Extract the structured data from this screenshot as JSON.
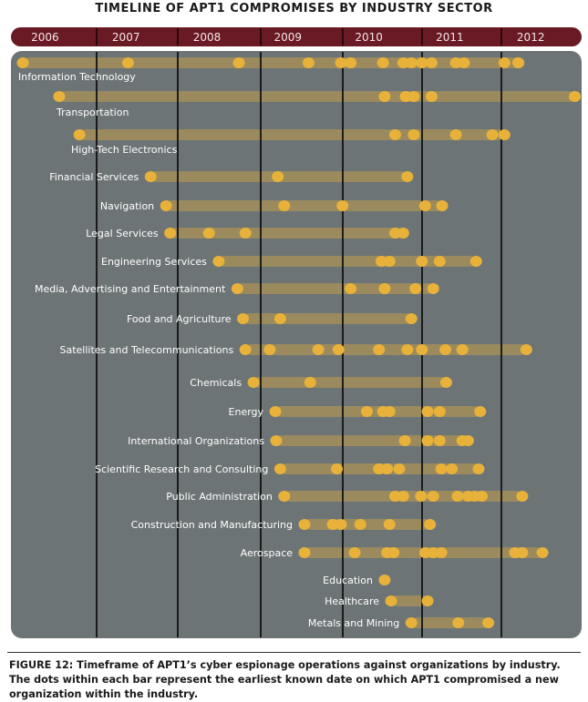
{
  "chart_data": {
    "type": "timeline",
    "title": "TIMELINE OF APT1 COMPROMISES BY INDUSTRY SECTOR",
    "x_ticks": [
      "2006",
      "2007",
      "2008",
      "2009",
      "2010",
      "2011",
      "2012"
    ],
    "x_range": [
      2005.5,
      2013.0
    ],
    "colors": {
      "header_band": "#6a1a24",
      "panel": "#6d7476",
      "bar": "#9a8a5e",
      "dot": "#e8b23a",
      "year_line": "#111111",
      "label": "#ffffff"
    },
    "sectors": [
      {
        "name": "Information Technology",
        "start": 2006.0,
        "end": 2012.2,
        "points": [
          2006.0,
          2007.3,
          2008.67,
          2009.53,
          2009.93,
          2010.05,
          2010.45,
          2010.7,
          2010.8,
          2010.93,
          2011.05,
          2011.35,
          2011.45,
          2011.95,
          2012.12
        ]
      },
      {
        "name": "Transportation",
        "start": 2006.45,
        "end": 2012.82,
        "points": [
          2006.45,
          2010.47,
          2010.73,
          2010.83,
          2011.05,
          2012.82
        ]
      },
      {
        "name": "High-Tech Electronics",
        "start": 2006.7,
        "end": 2012.0,
        "points": [
          2006.7,
          2010.6,
          2010.83,
          2011.35,
          2011.8,
          2011.95
        ]
      },
      {
        "name": "Financial Services",
        "start": 2007.58,
        "end": 2010.75,
        "points": [
          2007.58,
          2009.15,
          2010.75
        ]
      },
      {
        "name": "Navigation",
        "start": 2007.77,
        "end": 2011.18,
        "points": [
          2007.77,
          2009.23,
          2009.95,
          2010.97,
          2011.18
        ]
      },
      {
        "name": "Legal Services",
        "start": 2007.82,
        "end": 2010.7,
        "points": [
          2007.82,
          2008.3,
          2008.75,
          2010.6,
          2010.7
        ]
      },
      {
        "name": "Engineering Services",
        "start": 2008.42,
        "end": 2011.6,
        "points": [
          2008.42,
          2010.43,
          2010.53,
          2010.93,
          2011.15,
          2011.6
        ]
      },
      {
        "name": "Media, Advertising and Entertainment",
        "start": 2008.65,
        "end": 2011.07,
        "points": [
          2008.65,
          2010.05,
          2010.47,
          2010.85,
          2011.07
        ]
      },
      {
        "name": "Food and Agriculture",
        "start": 2008.72,
        "end": 2010.8,
        "points": [
          2008.72,
          2009.18,
          2010.8
        ]
      },
      {
        "name": "Satellites and Telecommunications",
        "start": 2008.75,
        "end": 2012.22,
        "points": [
          2008.75,
          2009.05,
          2009.65,
          2009.9,
          2010.4,
          2010.75,
          2010.93,
          2011.22,
          2011.43,
          2012.22
        ]
      },
      {
        "name": "Chemicals",
        "start": 2008.85,
        "end": 2011.23,
        "points": [
          2008.85,
          2009.55,
          2011.23
        ]
      },
      {
        "name": "Energy",
        "start": 2009.12,
        "end": 2011.65,
        "points": [
          2009.12,
          2010.25,
          2010.45,
          2010.53,
          2011.0,
          2011.15,
          2011.65
        ]
      },
      {
        "name": "International Organizations",
        "start": 2009.13,
        "end": 2011.5,
        "points": [
          2009.13,
          2010.72,
          2011.0,
          2011.15,
          2011.43,
          2011.5
        ]
      },
      {
        "name": "Scientific Research and Consulting",
        "start": 2009.18,
        "end": 2011.63,
        "points": [
          2009.18,
          2009.88,
          2010.4,
          2010.5,
          2010.65,
          2011.17,
          2011.3,
          2011.63
        ]
      },
      {
        "name": "Public Administration",
        "start": 2009.23,
        "end": 2012.17,
        "points": [
          2009.23,
          2010.6,
          2010.7,
          2010.92,
          2011.07,
          2011.37,
          2011.5,
          2011.58,
          2011.67,
          2012.17
        ]
      },
      {
        "name": "Construction and Manufacturing",
        "start": 2009.48,
        "end": 2011.03,
        "points": [
          2009.48,
          2009.83,
          2009.93,
          2010.17,
          2010.53,
          2011.03
        ]
      },
      {
        "name": "Aerospace",
        "start": 2009.48,
        "end": 2012.42,
        "points": [
          2009.48,
          2010.1,
          2010.5,
          2010.58,
          2010.97,
          2011.07,
          2011.17,
          2012.08,
          2012.17,
          2012.42
        ]
      },
      {
        "name": "Education",
        "start": 2010.47,
        "end": 2010.47,
        "points": [
          2010.47
        ]
      },
      {
        "name": "Healthcare",
        "start": 2010.55,
        "end": 2011.0,
        "points": [
          2010.55,
          2011.0
        ]
      },
      {
        "name": "Metals and Mining",
        "start": 2010.8,
        "end": 2011.75,
        "points": [
          2010.8,
          2011.38,
          2011.75
        ]
      }
    ]
  },
  "caption": "FIGURE 12: Timeframe of APT1’s cyber espionage operations against organizations by industry. The dots within each bar represent the earliest known date on which APT1 compromised a new organization within the industry."
}
